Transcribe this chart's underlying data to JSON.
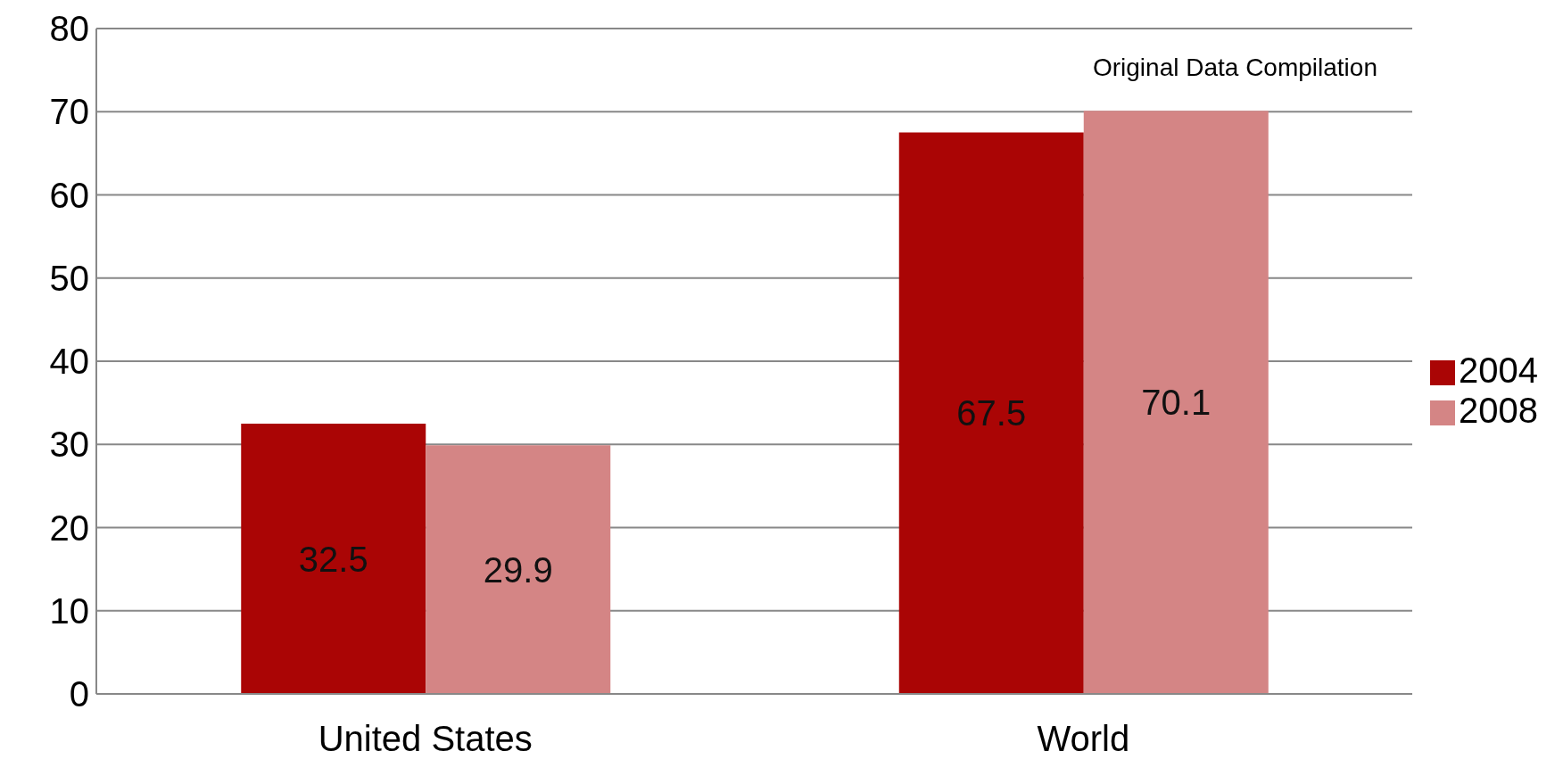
{
  "chart_data": {
    "type": "bar",
    "categories": [
      "United States",
      "World"
    ],
    "series": [
      {
        "name": "2004",
        "color": "#aa0505",
        "values": [
          32.5,
          67.5
        ]
      },
      {
        "name": "2008",
        "color": "#d48585",
        "values": [
          29.9,
          70.1
        ]
      }
    ],
    "ylim": [
      0,
      80
    ],
    "yticks": [
      0,
      10,
      20,
      30,
      40,
      50,
      60,
      70,
      80
    ],
    "grid": "y",
    "legend": "right",
    "data_labels": true,
    "annotations": [
      "Original Data Compilation"
    ]
  }
}
